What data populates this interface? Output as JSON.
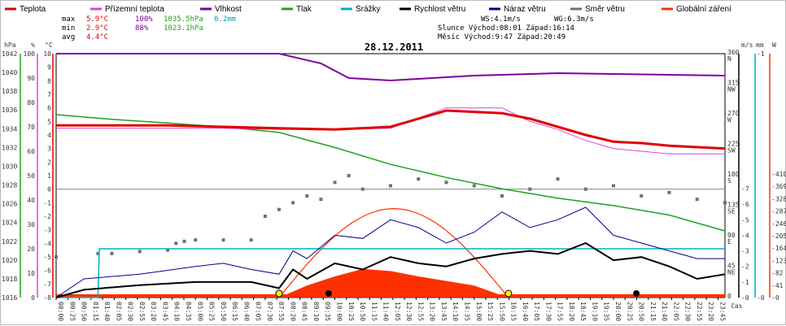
{
  "chart_data": {
    "type": "line",
    "title": "28.12.2011",
    "legend": [
      {
        "label": "Teplota",
        "color": "#e00000"
      },
      {
        "label": "Přízemní teplota",
        "color": "#e040e0"
      },
      {
        "label": "Vlhkost",
        "color": "#8000a0"
      },
      {
        "label": "Tlak",
        "color": "#20a020"
      },
      {
        "label": "Srážky",
        "color": "#00b0c8"
      },
      {
        "label": "Rychlost větru",
        "color": "#000000"
      },
      {
        "label": "Náraz větru",
        "color": "#000090"
      },
      {
        "label": "Směr větru",
        "color": "#707070"
      },
      {
        "label": "Globální záření",
        "color": "#ff3000"
      }
    ],
    "stats": {
      "max_label": "max",
      "max_temp": "5.9°C",
      "max_hum": "100%",
      "max_press": "1035.5hPa",
      "rain": "0.2mm",
      "min_label": "min",
      "min_temp": "2.9°C",
      "min_hum": "88%",
      "min_press": "1023.1hPa",
      "avg_label": "avg",
      "avg_temp": "4.4°C",
      "ws": "WS:4.1m/s",
      "wg": "WG:6.3m/s",
      "sun": "Slunce Východ:08:01  Západ:16:14",
      "moon": "Měsíc  Východ:9:47   Západ:20:49"
    },
    "axes": {
      "hpa_unit": "hPa",
      "hum_unit": "%",
      "temp_unit": "°C",
      "wind_unit": "m/s",
      "rain_unit": "mm",
      "rad_unit": "W",
      "x_unit": "čas",
      "hpa_ticks": [
        "1042",
        "1040",
        "1038",
        "1036",
        "1034",
        "1032",
        "1030",
        "1028",
        "1026",
        "1024",
        "1022",
        "1020",
        "1018",
        "1016"
      ],
      "hum_ticks": [
        "100",
        "90",
        "80",
        "70",
        "60",
        "50",
        "40",
        "30",
        "20",
        "10",
        "0"
      ],
      "temp_ticks": [
        "10",
        "9",
        "8",
        "7",
        "6",
        "5",
        "4",
        "3",
        "2",
        "1",
        "0",
        "-1",
        "-2",
        "-3",
        "-4",
        "-5",
        "-6",
        "-7",
        "-8"
      ],
      "dir_ticks": [
        {
          "deg": "360",
          "dir": "N"
        },
        {
          "deg": "315",
          "dir": "NW"
        },
        {
          "deg": "270",
          "dir": "W"
        },
        {
          "deg": "225",
          "dir": "SW"
        },
        {
          "deg": "180",
          "dir": "S"
        },
        {
          "deg": "135",
          "dir": "SE"
        },
        {
          "deg": "90",
          "dir": "E"
        },
        {
          "deg": "45",
          "dir": "NE"
        },
        {
          "deg": "0",
          "dir": ""
        }
      ],
      "wind_ticks": [
        "7",
        "6",
        "5",
        "4",
        "3",
        "2",
        "1",
        "0"
      ],
      "rain_ticks": [
        "1",
        "0"
      ],
      "rad_ticks": [
        "410",
        "369",
        "328",
        "287",
        "246",
        "205",
        "164",
        "123",
        "82",
        "41",
        "0"
      ],
      "time_ticks": [
        "00:00",
        "00:25",
        "00:50",
        "01:15",
        "01:40",
        "02:05",
        "02:30",
        "02:55",
        "03:20",
        "03:45",
        "04:10",
        "04:35",
        "05:00",
        "05:25",
        "05:50",
        "06:15",
        "06:40",
        "07:05",
        "07:30",
        "07:55",
        "08:20",
        "08:45",
        "09:10",
        "09:35",
        "10:00",
        "10:25",
        "10:50",
        "11:15",
        "11:40",
        "12:05",
        "12:30",
        "12:55",
        "13:20",
        "13:45",
        "14:10",
        "14:35",
        "15:00",
        "15:25",
        "15:50",
        "16:15",
        "16:40",
        "17:05",
        "17:30",
        "17:55",
        "18:20",
        "18:45",
        "19:10",
        "19:35",
        "20:00",
        "20:25",
        "20:50",
        "21:15",
        "21:40",
        "22:05",
        "22:30",
        "22:55",
        "23:20",
        "23:45"
      ]
    },
    "series": {
      "temp_h": [
        0,
        4,
        6,
        8,
        10,
        12,
        14,
        16,
        17,
        18,
        19,
        20,
        21,
        22,
        23,
        24
      ],
      "temp": [
        4.7,
        4.7,
        4.6,
        4.5,
        4.4,
        4.6,
        5.8,
        5.6,
        5.2,
        4.6,
        4.0,
        3.5,
        3.4,
        3.2,
        3.1,
        3.0
      ],
      "ground_temp": [
        4.5,
        4.5,
        4.5,
        4.4,
        4.4,
        4.5,
        6.0,
        6.0,
        5.0,
        4.4,
        3.6,
        3.0,
        2.8,
        2.6,
        2.6,
        2.6
      ],
      "hum_h": [
        0,
        8,
        9.5,
        10.5,
        12,
        15,
        18,
        24
      ],
      "hum": [
        100,
        100,
        96,
        90,
        89,
        91,
        92,
        91
      ],
      "press_h": [
        0,
        2,
        4,
        6,
        8,
        10,
        12,
        14,
        16,
        18,
        20,
        22,
        24
      ],
      "press": [
        1035.5,
        1035.0,
        1034.6,
        1034.2,
        1033.6,
        1032.0,
        1030.2,
        1028.8,
        1027.6,
        1026.6,
        1025.8,
        1024.8,
        1023.1
      ],
      "rain_h": [
        0,
        1.5,
        1.55,
        24
      ],
      "rain": [
        0,
        0,
        0.2,
        0.2
      ],
      "wind_h": [
        0,
        1,
        3,
        5,
        6,
        7,
        8,
        8.5,
        9,
        10,
        11,
        12,
        13,
        14,
        15,
        16,
        17,
        18,
        19,
        20,
        21,
        22,
        23,
        24
      ],
      "wind": [
        0,
        0.5,
        0.8,
        1.0,
        1.0,
        1.0,
        0.6,
        1.8,
        1.2,
        2.2,
        1.8,
        2.6,
        2.2,
        2.0,
        2.5,
        2.8,
        3.0,
        2.8,
        3.5,
        2.4,
        2.6,
        2.0,
        1.2,
        1.5
      ],
      "gust": [
        0,
        1.2,
        1.5,
        2.0,
        2.2,
        1.8,
        1.5,
        3.0,
        2.5,
        4.0,
        3.8,
        5.0,
        4.5,
        3.5,
        4.2,
        5.5,
        4.5,
        5.0,
        5.8,
        4.0,
        3.5,
        3.0,
        2.5,
        2.5
      ],
      "dir_h": [
        0,
        1.5,
        2,
        3,
        4,
        4.3,
        4.6,
        5,
        6,
        7,
        7.5,
        8,
        8.5,
        9,
        9.5,
        10,
        10.5,
        11,
        12,
        13,
        14,
        15,
        16,
        17,
        18,
        19,
        20,
        21,
        22,
        23,
        24
      ],
      "dir": [
        60,
        65,
        65,
        68,
        70,
        80,
        83,
        85,
        85,
        85,
        120,
        130,
        140,
        150,
        145,
        170,
        180,
        160,
        165,
        175,
        170,
        165,
        150,
        160,
        175,
        160,
        165,
        150,
        155,
        145,
        140
      ],
      "rad_h": [
        8.0,
        9,
        10,
        11,
        12,
        13,
        14,
        15,
        16.2
      ],
      "rad": [
        0,
        40,
        70,
        95,
        88,
        70,
        55,
        40,
        0
      ]
    },
    "events": [
      {
        "type": "sunrise",
        "h": 8.0
      },
      {
        "type": "sunset",
        "h": 16.23
      },
      {
        "type": "moonrise",
        "h": 9.78
      },
      {
        "type": "moonset",
        "h": 20.82
      }
    ]
  }
}
